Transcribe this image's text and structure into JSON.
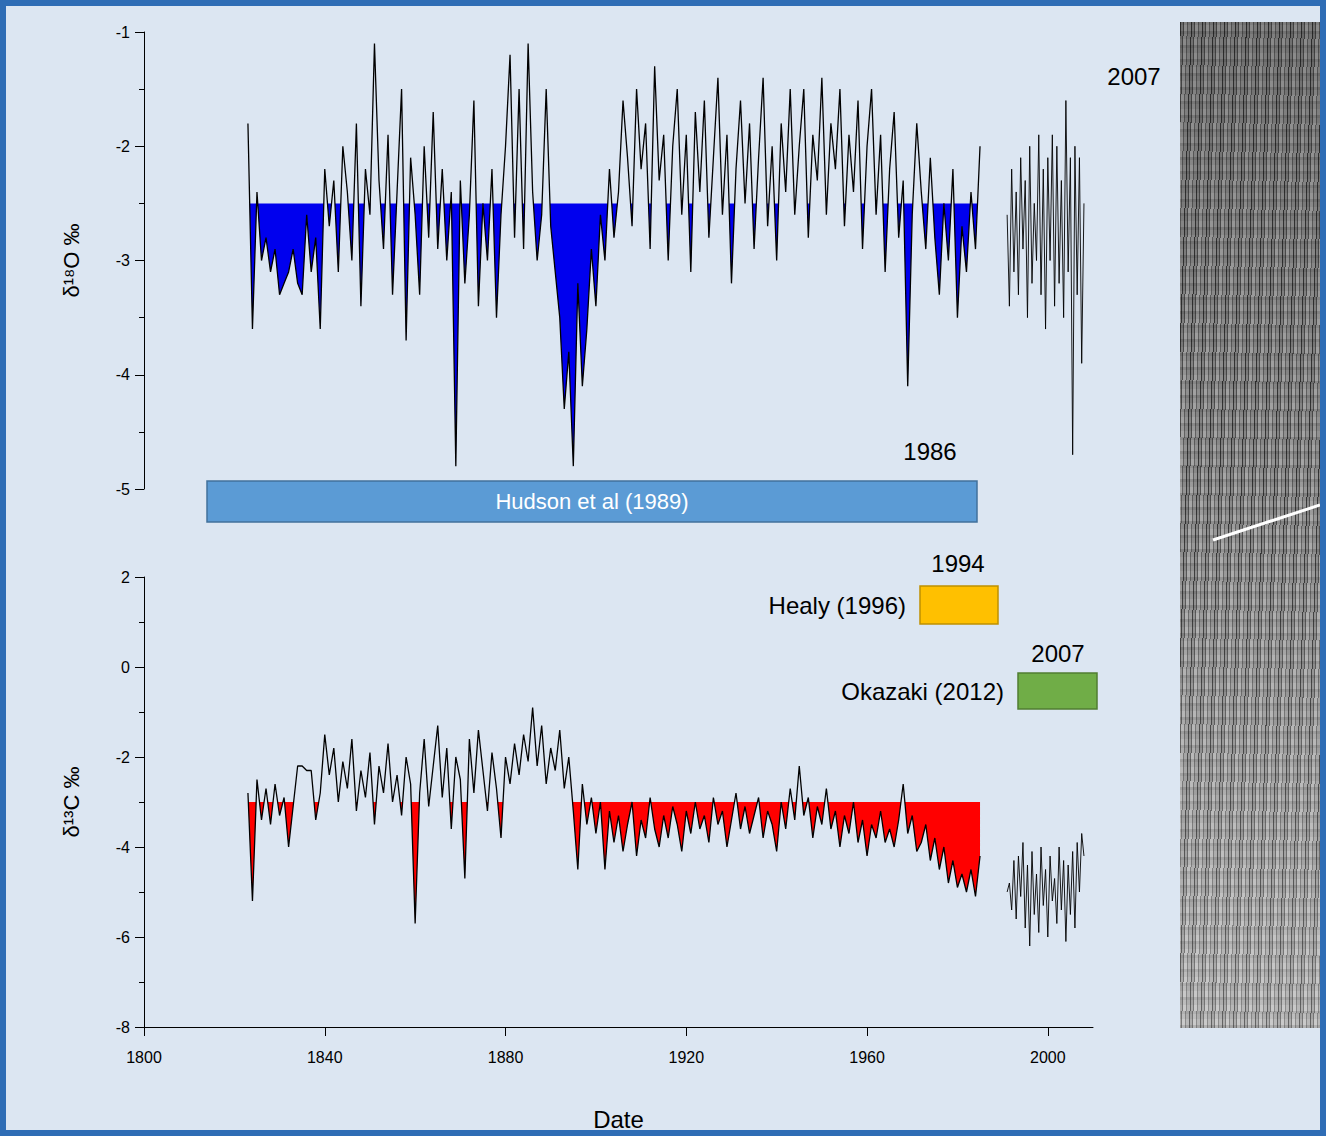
{
  "chart_data": [
    {
      "type": "line",
      "y_label": "δ¹⁸O ‰",
      "tick_labels": "y",
      "xlim": [
        1800,
        2010
      ],
      "ylim": [
        -5,
        -1
      ],
      "yticks": [
        -5,
        -4,
        -3,
        -2,
        -1
      ],
      "grid": false,
      "series": [
        {
          "color": "#000000",
          "fill_below": -2.5,
          "x": [
            1823,
            1824,
            1825,
            1826,
            1827,
            1828,
            1829,
            1830,
            1831,
            1832,
            1833,
            1834,
            1835,
            1836,
            1837,
            1838,
            1839,
            1840,
            1841,
            1842,
            1843,
            1844,
            1845,
            1846,
            1847,
            1848,
            1849,
            1850,
            1851,
            1852,
            1853,
            1854,
            1855,
            1856,
            1857,
            1858,
            1859,
            1860,
            1861,
            1862,
            1863,
            1864,
            1865,
            1866,
            1867,
            1868,
            1869,
            1870,
            1871,
            1872,
            1873,
            1874,
            1875,
            1876,
            1877,
            1878,
            1879,
            1880,
            1881,
            1882,
            1883,
            1884,
            1885,
            1886,
            1887,
            1888,
            1889,
            1890,
            1891,
            1892,
            1893,
            1894,
            1895,
            1896,
            1897,
            1898,
            1899,
            1900,
            1901,
            1902,
            1903,
            1904,
            1905,
            1906,
            1907,
            1908,
            1909,
            1910,
            1911,
            1912,
            1913,
            1914,
            1915,
            1916,
            1917,
            1918,
            1919,
            1920,
            1921,
            1922,
            1923,
            1924,
            1925,
            1926,
            1927,
            1928,
            1929,
            1930,
            1931,
            1932,
            1933,
            1934,
            1935,
            1936,
            1937,
            1938,
            1939,
            1940,
            1941,
            1942,
            1943,
            1944,
            1945,
            1946,
            1947,
            1948,
            1949,
            1950,
            1951,
            1952,
            1953,
            1954,
            1955,
            1956,
            1957,
            1958,
            1959,
            1960,
            1961,
            1962,
            1963,
            1964,
            1965,
            1966,
            1967,
            1968,
            1969,
            1970,
            1971,
            1972,
            1973,
            1974,
            1975,
            1976,
            1977,
            1978,
            1979,
            1980,
            1981,
            1982,
            1983,
            1984,
            1985
          ],
          "values": [
            -1.8,
            -3.6,
            -2.4,
            -3.0,
            -2.8,
            -3.1,
            -2.9,
            -3.3,
            -3.2,
            -3.1,
            -2.9,
            -3.2,
            -3.3,
            -2.6,
            -3.1,
            -2.8,
            -3.6,
            -2.2,
            -2.7,
            -2.3,
            -3.1,
            -2.0,
            -2.4,
            -3.0,
            -1.8,
            -3.4,
            -2.2,
            -2.6,
            -1.1,
            -2.3,
            -2.9,
            -1.9,
            -3.3,
            -2.4,
            -1.5,
            -3.7,
            -2.1,
            -2.6,
            -3.3,
            -2.0,
            -2.8,
            -1.7,
            -2.9,
            -2.2,
            -3.0,
            -2.4,
            -4.8,
            -2.3,
            -3.2,
            -2.6,
            -1.6,
            -3.4,
            -2.5,
            -3.0,
            -2.2,
            -3.5,
            -2.6,
            -2.0,
            -1.2,
            -2.8,
            -1.5,
            -2.9,
            -1.1,
            -2.4,
            -3.0,
            -2.6,
            -1.5,
            -2.7,
            -3.1,
            -3.5,
            -4.3,
            -3.8,
            -4.8,
            -3.2,
            -4.1,
            -3.6,
            -2.9,
            -3.4,
            -2.6,
            -3.0,
            -2.2,
            -2.8,
            -2.4,
            -1.6,
            -2.1,
            -2.7,
            -1.5,
            -2.2,
            -1.8,
            -2.9,
            -1.3,
            -2.3,
            -1.9,
            -3.0,
            -2.0,
            -1.5,
            -2.6,
            -1.9,
            -3.1,
            -1.7,
            -2.4,
            -1.6,
            -2.8,
            -2.1,
            -1.4,
            -2.6,
            -1.9,
            -3.2,
            -2.2,
            -1.6,
            -2.5,
            -1.8,
            -2.9,
            -2.1,
            -1.4,
            -2.7,
            -2.0,
            -3.0,
            -1.8,
            -2.4,
            -1.5,
            -2.6,
            -2.0,
            -1.5,
            -2.8,
            -1.9,
            -2.3,
            -1.4,
            -2.6,
            -1.8,
            -2.2,
            -1.5,
            -2.7,
            -1.9,
            -2.4,
            -1.6,
            -2.9,
            -2.0,
            -1.5,
            -2.6,
            -1.9,
            -3.1,
            -2.2,
            -1.7,
            -2.8,
            -2.3,
            -4.1,
            -2.6,
            -1.8,
            -2.4,
            -2.9,
            -2.1,
            -2.8,
            -3.3,
            -2.5,
            -3.0,
            -2.2,
            -3.5,
            -2.7,
            -3.1,
            -2.4,
            -2.9,
            -2.0
          ]
        },
        {
          "color": "#000000",
          "x": [
            1991,
            1991.5,
            1992,
            1992.5,
            1993,
            1993.5,
            1994,
            1994.5,
            1995,
            1995.5,
            1996,
            1996.5,
            1997,
            1997.5,
            1998,
            1998.5,
            1999,
            1999.5,
            2000,
            2000.5,
            2001,
            2001.5,
            2002,
            2002.5,
            2003,
            2003.5,
            2004,
            2004.5,
            2005,
            2005.5,
            2006,
            2006.5,
            2007,
            2007.5,
            2008
          ],
          "values": [
            -2.6,
            -3.4,
            -2.2,
            -3.1,
            -2.4,
            -3.3,
            -2.1,
            -2.9,
            -2.3,
            -3.5,
            -2.0,
            -3.2,
            -2.5,
            -3.0,
            -1.9,
            -3.3,
            -2.2,
            -3.6,
            -2.1,
            -3.0,
            -1.9,
            -3.4,
            -2.0,
            -3.2,
            -2.3,
            -3.5,
            -1.6,
            -3.1,
            -2.1,
            -4.7,
            -2.0,
            -3.3,
            -2.1,
            -3.9,
            -2.5
          ]
        }
      ]
    },
    {
      "type": "line",
      "y_label": "δ¹³C ‰",
      "x_label": "Date",
      "xlim": [
        1800,
        2010
      ],
      "xticks": [
        1800,
        1840,
        1880,
        1920,
        1960,
        2000
      ],
      "ylim": [
        -8,
        2
      ],
      "yticks": [
        -8,
        -6,
        -4,
        -2,
        0,
        2
      ],
      "grid": false,
      "series": [
        {
          "color": "#000000",
          "fill_below": -3,
          "x": [
            1823,
            1824,
            1825,
            1826,
            1827,
            1828,
            1829,
            1830,
            1831,
            1832,
            1833,
            1834,
            1835,
            1836,
            1837,
            1838,
            1839,
            1840,
            1841,
            1842,
            1843,
            1844,
            1845,
            1846,
            1847,
            1848,
            1849,
            1850,
            1851,
            1852,
            1853,
            1854,
            1855,
            1856,
            1857,
            1858,
            1859,
            1860,
            1861,
            1862,
            1863,
            1864,
            1865,
            1866,
            1867,
            1868,
            1869,
            1870,
            1871,
            1872,
            1873,
            1874,
            1875,
            1876,
            1877,
            1878,
            1879,
            1880,
            1881,
            1882,
            1883,
            1884,
            1885,
            1886,
            1887,
            1888,
            1889,
            1890,
            1891,
            1892,
            1893,
            1894,
            1895,
            1896,
            1897,
            1898,
            1899,
            1900,
            1901,
            1902,
            1903,
            1904,
            1905,
            1906,
            1907,
            1908,
            1909,
            1910,
            1911,
            1912,
            1913,
            1914,
            1915,
            1916,
            1917,
            1918,
            1919,
            1920,
            1921,
            1922,
            1923,
            1924,
            1925,
            1926,
            1927,
            1928,
            1929,
            1930,
            1931,
            1932,
            1933,
            1934,
            1935,
            1936,
            1937,
            1938,
            1939,
            1940,
            1941,
            1942,
            1943,
            1944,
            1945,
            1946,
            1947,
            1948,
            1949,
            1950,
            1951,
            1952,
            1953,
            1954,
            1955,
            1956,
            1957,
            1958,
            1959,
            1960,
            1961,
            1962,
            1963,
            1964,
            1965,
            1966,
            1967,
            1968,
            1969,
            1970,
            1971,
            1972,
            1973,
            1974,
            1975,
            1976,
            1977,
            1978,
            1979,
            1980,
            1981,
            1982,
            1983,
            1984,
            1985
          ],
          "values": [
            -2.8,
            -5.2,
            -2.5,
            -3.4,
            -2.7,
            -3.5,
            -2.6,
            -3.3,
            -2.9,
            -4.0,
            -3.1,
            -2.2,
            -2.2,
            -2.3,
            -2.3,
            -3.4,
            -2.8,
            -1.5,
            -2.4,
            -1.8,
            -3.0,
            -2.1,
            -2.7,
            -1.6,
            -3.2,
            -2.3,
            -2.9,
            -1.9,
            -3.5,
            -2.2,
            -2.8,
            -1.7,
            -3.0,
            -2.4,
            -3.3,
            -2.0,
            -2.6,
            -5.7,
            -2.8,
            -1.6,
            -3.1,
            -2.2,
            -1.3,
            -2.9,
            -1.8,
            -3.6,
            -2.0,
            -2.5,
            -4.7,
            -1.6,
            -2.8,
            -1.4,
            -2.3,
            -3.2,
            -1.9,
            -2.7,
            -3.8,
            -2.0,
            -2.6,
            -1.7,
            -2.4,
            -1.5,
            -2.1,
            -0.9,
            -2.2,
            -1.3,
            -2.6,
            -1.8,
            -2.3,
            -1.4,
            -2.7,
            -2.0,
            -3.2,
            -4.5,
            -2.6,
            -3.5,
            -2.9,
            -3.7,
            -3.0,
            -4.5,
            -3.2,
            -3.9,
            -3.3,
            -4.1,
            -3.5,
            -3.0,
            -4.2,
            -3.4,
            -3.8,
            -2.9,
            -3.6,
            -4.0,
            -3.3,
            -3.8,
            -3.1,
            -3.5,
            -4.1,
            -3.2,
            -3.7,
            -3.0,
            -3.6,
            -3.3,
            -3.9,
            -2.9,
            -3.5,
            -3.2,
            -4.0,
            -3.4,
            -2.8,
            -3.6,
            -3.1,
            -3.7,
            -3.3,
            -2.9,
            -3.8,
            -3.2,
            -3.5,
            -4.1,
            -3.0,
            -3.6,
            -2.7,
            -3.4,
            -2.2,
            -3.3,
            -2.9,
            -3.8,
            -3.1,
            -3.5,
            -2.7,
            -3.6,
            -3.2,
            -4.0,
            -3.3,
            -3.7,
            -3.0,
            -3.9,
            -3.4,
            -4.2,
            -3.5,
            -3.8,
            -3.2,
            -3.9,
            -3.6,
            -4.0,
            -3.4,
            -2.6,
            -3.7,
            -3.3,
            -4.1,
            -3.9,
            -3.5,
            -4.3,
            -3.8,
            -4.5,
            -4.0,
            -4.8,
            -4.3,
            -4.9,
            -4.6,
            -5.0,
            -4.5,
            -5.1,
            -4.2
          ]
        },
        {
          "color": "#000000",
          "x": [
            1991,
            1991.5,
            1992,
            1992.5,
            1993,
            1993.5,
            1994,
            1994.5,
            1995,
            1995.5,
            1996,
            1996.5,
            1997,
            1997.5,
            1998,
            1998.5,
            1999,
            1999.5,
            2000,
            2000.5,
            2001,
            2001.5,
            2002,
            2002.5,
            2003,
            2003.5,
            2004,
            2004.5,
            2005,
            2005.5,
            2006,
            2006.5,
            2007,
            2007.5,
            2008
          ],
          "values": [
            -5.0,
            -4.8,
            -5.4,
            -4.3,
            -5.6,
            -4.2,
            -5.1,
            -3.9,
            -5.8,
            -4.4,
            -6.2,
            -4.1,
            -5.5,
            -4.6,
            -5.9,
            -4.0,
            -5.3,
            -4.5,
            -6.0,
            -4.2,
            -5.2,
            -4.7,
            -5.7,
            -4.0,
            -5.4,
            -4.3,
            -6.1,
            -4.4,
            -5.5,
            -4.1,
            -5.8,
            -3.9,
            -5.0,
            -3.7,
            -4.2
          ]
        }
      ]
    }
  ],
  "annotations": [
    {
      "text": "Hudson et al (1989)",
      "label": "1986",
      "color": "#5b9bd5"
    },
    {
      "text": "Healy (1996)",
      "label": "1994",
      "color": "#ffc000"
    },
    {
      "text": "Okazaki (2012)",
      "label": "2007",
      "color": "#70ad47"
    }
  ],
  "photo": {
    "label": "2007"
  }
}
